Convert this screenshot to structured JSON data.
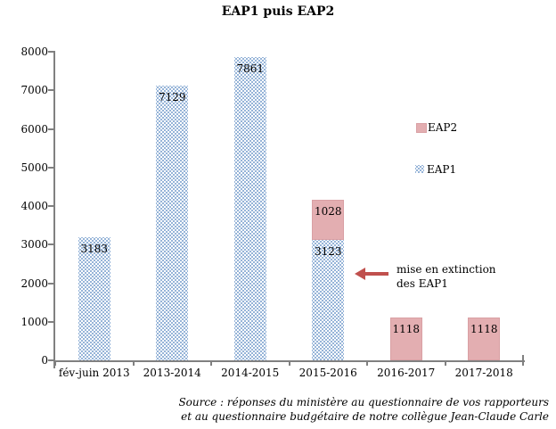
{
  "chart_data": {
    "type": "bar",
    "stacked": true,
    "title": "EAP1 puis EAP2",
    "categories": [
      "fév-juin 2013",
      "2013-2014",
      "2014-2015",
      "2015-2016",
      "2016-2017",
      "2017-2018"
    ],
    "series": [
      {
        "name": "EAP2",
        "pattern": "solid",
        "color": "#E3AEB1",
        "values": [
          0,
          0,
          0,
          1028,
          1118,
          1118
        ]
      },
      {
        "name": "EAP1",
        "pattern": "dotted",
        "color": "#4F81BD",
        "values": [
          3183,
          7129,
          7861,
          3123,
          0,
          0
        ]
      }
    ],
    "xlabel": "",
    "ylabel": "",
    "ylim": [
      0,
      8000
    ],
    "y_tick_step": 1000,
    "grid": false,
    "legend_position": "right",
    "data_labels": true
  },
  "legend": {
    "items": [
      {
        "label": "EAP2",
        "swatch": "solid"
      },
      {
        "label": "EAP1",
        "swatch": "dotted"
      }
    ]
  },
  "annotation": {
    "line1": "mise en extinction",
    "line2": "des EAP1",
    "arrow_color": "#C0504D"
  },
  "source": {
    "line1": "Source : réponses du ministère au questionnaire de vos rapporteurs",
    "line2": "et au questionnaire budgétaire de notre collègue Jean-Claude Carle"
  },
  "colors": {
    "axis": "#808080",
    "dot_blue": "#4F81BD",
    "pink_fill": "#E3AEB1",
    "arrow_red": "#C0504D"
  }
}
